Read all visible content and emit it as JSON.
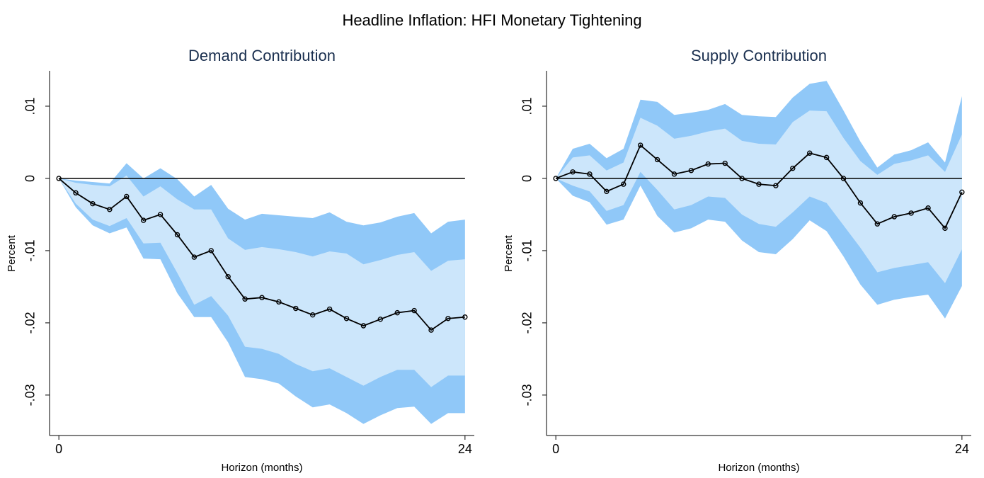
{
  "title": "Headline Inflation: HFI Monetary Tightening",
  "chart_data": [
    {
      "type": "line",
      "title": "Demand Contribution",
      "xlabel": "Horizon (months)",
      "ylabel": "Percent",
      "x": [
        0,
        1,
        2,
        3,
        4,
        5,
        6,
        7,
        8,
        9,
        10,
        11,
        12,
        13,
        14,
        15,
        16,
        17,
        18,
        19,
        20,
        21,
        22,
        23,
        24
      ],
      "series": [
        {
          "color": "#000000",
          "values": [
            0,
            -0.002,
            -0.0035,
            -0.0043,
            -0.0025,
            -0.0058,
            -0.005,
            -0.0078,
            -0.0109,
            -0.01,
            -0.0136,
            -0.0167,
            -0.0165,
            -0.0171,
            -0.018,
            -0.0189,
            -0.0181,
            -0.0194,
            -0.0204,
            -0.0195,
            -0.0186,
            -0.0183,
            -0.021,
            -0.0194,
            -0.0192
          ]
        }
      ],
      "bands": [
        {
          "color": "#90c8f8",
          "upper": [
            0,
            -0.0003,
            -0.0005,
            -0.0007,
            0.0021,
            0,
            0.0014,
            -0.0001,
            -0.0025,
            -0.0009,
            -0.0042,
            -0.0057,
            -0.0049,
            -0.0051,
            -0.0053,
            -0.0055,
            -0.0047,
            -0.006,
            -0.0065,
            -0.0061,
            -0.0053,
            -0.0048,
            -0.0076,
            -0.006,
            -0.0057
          ],
          "lower": [
            0,
            -0.004,
            -0.0065,
            -0.0076,
            -0.0068,
            -0.0111,
            -0.0112,
            -0.0159,
            -0.0192,
            -0.0192,
            -0.0227,
            -0.0275,
            -0.0278,
            -0.0284,
            -0.0302,
            -0.0317,
            -0.0313,
            -0.0325,
            -0.034,
            -0.0328,
            -0.0318,
            -0.0316,
            -0.034,
            -0.0325,
            -0.0325
          ]
        },
        {
          "color": "#cce6fb",
          "upper": [
            0,
            -0.0006,
            -0.0009,
            -0.0011,
            0.0004,
            -0.0025,
            -0.0011,
            -0.0029,
            -0.0043,
            -0.0043,
            -0.0083,
            -0.0099,
            -0.0095,
            -0.0098,
            -0.0102,
            -0.0108,
            -0.0101,
            -0.0104,
            -0.0119,
            -0.0113,
            -0.0106,
            -0.0102,
            -0.0128,
            -0.0114,
            -0.0112
          ],
          "lower": [
            0,
            -0.0035,
            -0.0057,
            -0.0066,
            -0.0055,
            -0.009,
            -0.0089,
            -0.0131,
            -0.0175,
            -0.0163,
            -0.019,
            -0.0233,
            -0.0236,
            -0.0243,
            -0.0257,
            -0.0267,
            -0.0263,
            -0.0275,
            -0.0287,
            -0.0275,
            -0.0265,
            -0.0265,
            -0.0289,
            -0.0273,
            -0.0273
          ]
        }
      ],
      "hline": 0,
      "xlim": [
        -0.55,
        24.55
      ],
      "xticks": [
        0,
        24
      ],
      "ylim": [
        -0.0356,
        0.0149
      ],
      "yticks": [
        {
          "value": 0.01,
          "label": ".01"
        },
        0,
        {
          "value": -0.01,
          "label": "-.01"
        },
        {
          "value": -0.02,
          "label": "-.02"
        },
        {
          "value": -0.03,
          "label": "-.03"
        }
      ]
    },
    {
      "type": "line",
      "title": "Supply Contribution",
      "xlabel": "Horizon (months)",
      "ylabel": "Percent",
      "x": [
        0,
        1,
        2,
        3,
        4,
        5,
        6,
        7,
        8,
        9,
        10,
        11,
        12,
        13,
        14,
        15,
        16,
        17,
        18,
        19,
        20,
        21,
        22,
        23,
        24
      ],
      "series": [
        {
          "color": "#000000",
          "values": [
            0,
            0.0009,
            0.0006,
            -0.0018,
            -0.0008,
            0.0046,
            0.0026,
            0.0006,
            0.0011,
            0.002,
            0.0021,
            0,
            -0.0008,
            -0.001,
            0.0014,
            0.0035,
            0.0029,
            0,
            -0.0034,
            -0.0063,
            -0.0053,
            -0.0048,
            -0.0041,
            -0.0069,
            -0.0019
          ]
        }
      ],
      "bands": [
        {
          "color": "#90c8f8",
          "upper": [
            0,
            0.0041,
            0.0048,
            0.0028,
            0.0041,
            0.0109,
            0.0106,
            0.0088,
            0.0091,
            0.0095,
            0.0103,
            0.0088,
            0.0086,
            0.0085,
            0.0112,
            0.0131,
            0.0135,
            0.0094,
            0.0051,
            0.0015,
            0.0033,
            0.0039,
            0.005,
            0.0022,
            0.0114
          ],
          "lower": [
            0,
            -0.0024,
            -0.0033,
            -0.0064,
            -0.0057,
            -0.001,
            -0.0052,
            -0.0075,
            -0.0069,
            -0.0057,
            -0.006,
            -0.0086,
            -0.0102,
            -0.0105,
            -0.0084,
            -0.0058,
            -0.0073,
            -0.0108,
            -0.0147,
            -0.0175,
            -0.0168,
            -0.0164,
            -0.0161,
            -0.0194,
            -0.0149
          ]
        },
        {
          "color": "#cce6fb",
          "upper": [
            0,
            0.0029,
            0.0032,
            0.0011,
            0.0022,
            0.0084,
            0.0073,
            0.0055,
            0.0059,
            0.0065,
            0.0069,
            0.0052,
            0.0048,
            0.0047,
            0.0078,
            0.0094,
            0.0093,
            0.0056,
            0.0024,
            0.0005,
            0.002,
            0.0025,
            0.0032,
            0.0009,
            0.0061
          ],
          "lower": [
            0,
            -0.001,
            -0.0018,
            -0.0045,
            -0.0037,
            0.0009,
            -0.0016,
            -0.0043,
            -0.0037,
            -0.0025,
            -0.0027,
            -0.005,
            -0.0063,
            -0.0067,
            -0.0047,
            -0.0025,
            -0.0034,
            -0.0065,
            -0.0096,
            -0.013,
            -0.0124,
            -0.012,
            -0.0116,
            -0.0145,
            -0.0098
          ]
        }
      ],
      "hline": 0,
      "xlim": [
        -0.55,
        24.55
      ],
      "xticks": [
        0,
        24
      ],
      "ylim": [
        -0.0356,
        0.0149
      ],
      "yticks": [
        {
          "value": 0.01,
          "label": ".01"
        },
        0,
        {
          "value": -0.01,
          "label": "-.01"
        },
        {
          "value": -0.02,
          "label": "-.02"
        },
        {
          "value": -0.03,
          "label": "-.03"
        }
      ]
    }
  ]
}
